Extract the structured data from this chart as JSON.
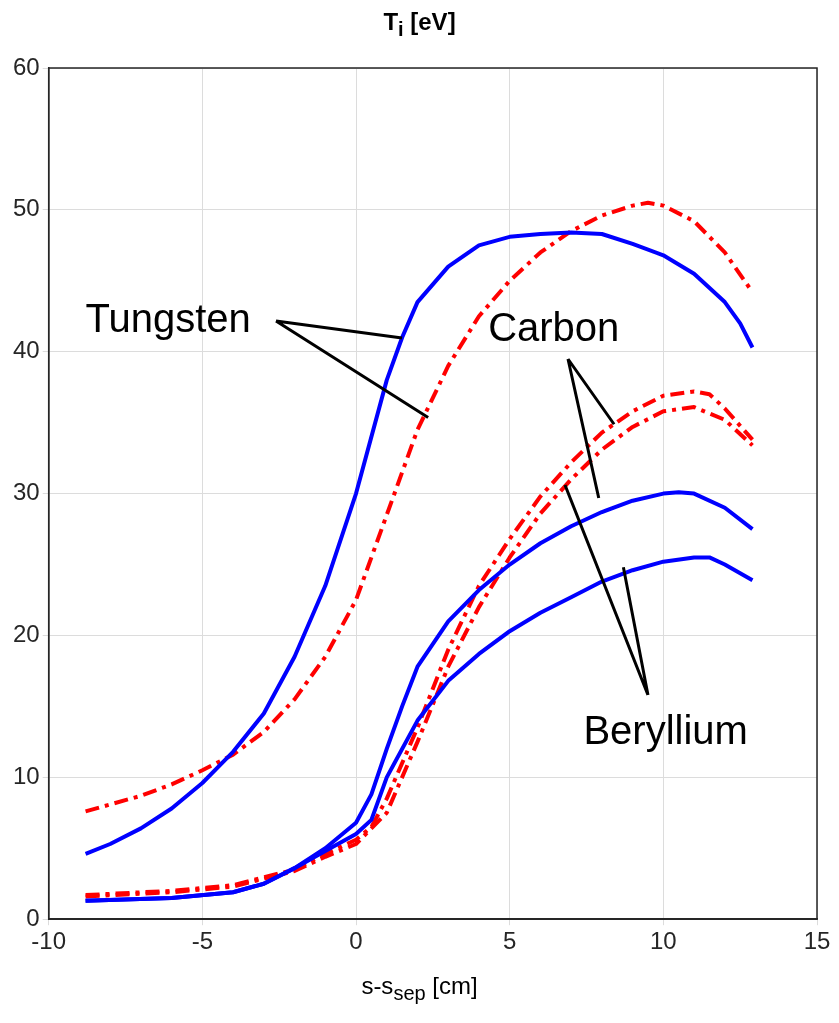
{
  "chart_data": {
    "type": "line",
    "title": "T$_{i}$ [eV]",
    "xlabel": "s-s$_{sep}$ [cm]",
    "xlim": [
      -10,
      15
    ],
    "xticks": [
      -10,
      -5,
      0,
      5,
      10,
      15
    ],
    "ylim": [
      0,
      60
    ],
    "yticks": [
      0,
      10,
      20,
      30,
      40,
      50,
      60
    ],
    "grid": true,
    "marker": "none",
    "series": [
      {
        "color": "#0000ff",
        "line_style": "solid",
        "x": [
          -8.8,
          -8,
          -7,
          -6,
          -5,
          -4,
          -3,
          -2,
          -1,
          0,
          1,
          1.5,
          2,
          3,
          4,
          5,
          6,
          7,
          8,
          9,
          10,
          11,
          12,
          12.5,
          12.9
        ],
        "values": [
          4.6,
          5.3,
          6.4,
          7.8,
          9.6,
          11.8,
          14.5,
          18.5,
          23.5,
          30,
          38,
          41,
          43.5,
          46,
          47.5,
          48.1,
          48.3,
          48.4,
          48.3,
          47.6,
          46.8,
          45.5,
          43.5,
          42,
          40.3
        ]
      },
      {
        "color": "#ff0000",
        "line_style": "dashed",
        "x": [
          -8.8,
          -7,
          -6,
          -5,
          -4,
          -3,
          -2,
          -1,
          0,
          1,
          2,
          3,
          4,
          5,
          6,
          7,
          8,
          9,
          9.5,
          10,
          11,
          12,
          12.9
        ],
        "values": [
          7.6,
          8.7,
          9.5,
          10.5,
          11.6,
          13.2,
          15.5,
          18.5,
          22.5,
          28.5,
          34.5,
          39,
          42.5,
          45,
          47,
          48.5,
          49.6,
          50.3,
          50.5,
          50.3,
          49.2,
          47,
          44.2
        ]
      },
      {
        "color": "#0000ff",
        "line_style": "solid",
        "x": [
          -8.8,
          -6,
          -4,
          -3,
          -2,
          -1,
          0,
          0.5,
          1,
          1.5,
          2,
          3,
          4,
          5,
          6,
          7,
          8,
          9,
          10,
          10.5,
          11,
          12,
          12.9
        ],
        "values": [
          1.3,
          1.5,
          1.9,
          2.5,
          3.6,
          5,
          6.8,
          8.8,
          12,
          15,
          17.8,
          21,
          23.2,
          25,
          26.5,
          27.7,
          28.7,
          29.5,
          30,
          30.1,
          30,
          29,
          27.5
        ]
      },
      {
        "color": "#0000ff",
        "line_style": "solid",
        "x": [
          -8.8,
          -6,
          -4,
          -3,
          -2,
          -1,
          0,
          0.5,
          1,
          2,
          3,
          4,
          5,
          6,
          7,
          8,
          9,
          10,
          11,
          11.5,
          12,
          12.9
        ],
        "values": [
          1.3,
          1.5,
          1.9,
          2.5,
          3.6,
          4.8,
          6,
          7,
          10,
          14,
          16.8,
          18.7,
          20.3,
          21.6,
          22.7,
          23.8,
          24.6,
          25.2,
          25.5,
          25.5,
          25,
          23.9
        ]
      },
      {
        "color": "#ff0000",
        "line_style": "dashed",
        "x": [
          -8.8,
          -6,
          -4,
          -2,
          -1,
          0,
          0.5,
          1,
          2,
          3,
          4,
          5,
          6,
          7,
          8,
          9,
          10,
          11,
          11.5,
          12,
          12.9
        ],
        "values": [
          1.7,
          2,
          2.4,
          3.5,
          4.6,
          5.6,
          6.5,
          8.5,
          13.5,
          19,
          23.5,
          26.8,
          29.8,
          32.2,
          34.3,
          35.8,
          36.9,
          37.2,
          37,
          36,
          33.8
        ]
      },
      {
        "color": "#ff0000",
        "line_style": "dashed",
        "x": [
          -8.8,
          -6,
          -4,
          -2,
          -1,
          0,
          1,
          2,
          3,
          4,
          5,
          6,
          7,
          8,
          9,
          10,
          11,
          12,
          12.9
        ],
        "values": [
          1.6,
          1.9,
          2.3,
          3.4,
          4.4,
          5.3,
          7.5,
          12.5,
          17.8,
          22,
          25.5,
          28.6,
          31,
          33.1,
          34.7,
          35.8,
          36.1,
          35.2,
          33.4
        ]
      }
    ],
    "annotations": [
      {
        "text": "Tungsten",
        "x": 1.5,
        "y": 41
      },
      {
        "text": "Carbon",
        "x": 8.4,
        "y": 34.9
      },
      {
        "text": "Beryllium",
        "x": 6.8,
        "y": 30.6
      }
    ]
  }
}
